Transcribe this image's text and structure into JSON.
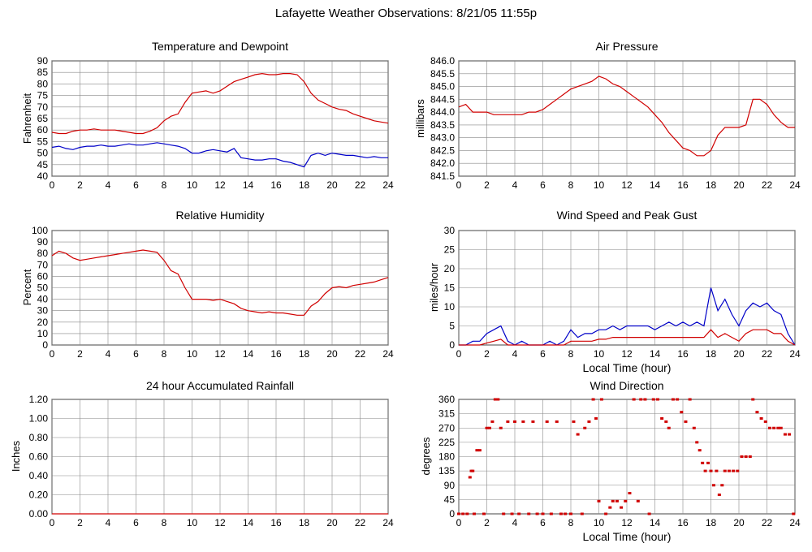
{
  "title": "Lafayette Weather Observations: 8/21/05 11:55p",
  "colors": {
    "red": "#d00000",
    "blue": "#0000c8",
    "grid": "#888888"
  },
  "chart_data": [
    {
      "id": "temperature",
      "type": "line",
      "title": "Temperature and Dewpoint",
      "xlabel": "",
      "ylabel": "Fahrenheit",
      "xlim": [
        0,
        24
      ],
      "ylim": [
        40,
        90
      ],
      "xticks": [
        0,
        2,
        4,
        6,
        8,
        10,
        12,
        14,
        16,
        18,
        20,
        22,
        24
      ],
      "yticks": [
        40,
        45,
        50,
        55,
        60,
        65,
        70,
        75,
        80,
        85,
        90
      ],
      "grid": true,
      "series": [
        {
          "color": "#d00000",
          "x": [
            0,
            0.5,
            1,
            1.5,
            2,
            2.5,
            3,
            3.5,
            4,
            4.5,
            5,
            5.5,
            6,
            6.5,
            7,
            7.5,
            8,
            8.5,
            9,
            9.5,
            10,
            10.5,
            11,
            11.5,
            12,
            12.5,
            13,
            13.5,
            14,
            14.5,
            15,
            15.5,
            16,
            16.5,
            17,
            17.5,
            18,
            18.5,
            19,
            19.5,
            20,
            20.5,
            21,
            21.5,
            22,
            22.5,
            23,
            23.5,
            24
          ],
          "y": [
            59,
            58.5,
            58.5,
            59.5,
            60,
            60,
            60.5,
            60,
            60,
            60,
            59.5,
            59,
            58.5,
            58.5,
            59.5,
            61,
            64,
            66,
            67,
            72,
            76,
            76.5,
            77,
            76,
            77,
            79,
            81,
            82,
            83,
            84,
            84.5,
            84,
            84,
            84.5,
            84.5,
            84,
            81,
            76,
            73,
            71.5,
            70,
            69,
            68.5,
            67,
            66,
            65,
            64,
            63.5,
            63
          ]
        },
        {
          "color": "#0000c8",
          "x": [
            0,
            0.5,
            1,
            1.5,
            2,
            2.5,
            3,
            3.5,
            4,
            4.5,
            5,
            5.5,
            6,
            6.5,
            7,
            7.5,
            8,
            8.5,
            9,
            9.5,
            10,
            10.5,
            11,
            11.5,
            12,
            12.5,
            13,
            13.5,
            14,
            14.5,
            15,
            15.5,
            16,
            16.5,
            17,
            17.5,
            18,
            18.5,
            19,
            19.5,
            20,
            20.5,
            21,
            21.5,
            22,
            22.5,
            23,
            23.5,
            24
          ],
          "y": [
            52.5,
            53,
            52,
            51.5,
            52.5,
            53,
            53,
            53.5,
            53,
            53,
            53.5,
            54,
            53.5,
            53.5,
            54,
            54.5,
            54,
            53.5,
            53,
            52,
            50,
            50,
            51,
            51.5,
            51,
            50.5,
            52,
            48,
            47.5,
            47,
            47,
            47.5,
            47.5,
            46.5,
            46,
            45,
            44,
            49,
            50,
            49,
            50,
            49.5,
            49,
            49,
            48.5,
            48,
            48.5,
            48,
            48
          ]
        }
      ]
    },
    {
      "id": "pressure",
      "type": "line",
      "title": "Air Pressure",
      "xlabel": "",
      "ylabel": "millibars",
      "xlim": [
        0,
        24
      ],
      "ylim": [
        841.5,
        846.0
      ],
      "xticks": [
        0,
        2,
        4,
        6,
        8,
        10,
        12,
        14,
        16,
        18,
        20,
        22,
        24
      ],
      "yticks": [
        "841.5",
        "842.0",
        "842.5",
        "843.0",
        "843.5",
        "844.0",
        "844.5",
        "845.0",
        "845.5",
        "846.0"
      ],
      "grid": true,
      "series": [
        {
          "color": "#d00000",
          "x": [
            0,
            0.5,
            1,
            1.5,
            2,
            2.5,
            3,
            3.5,
            4,
            4.5,
            5,
            5.5,
            6,
            6.5,
            7,
            7.5,
            8,
            8.5,
            9,
            9.5,
            10,
            10.5,
            11,
            11.5,
            12,
            12.5,
            13,
            13.5,
            14,
            14.5,
            15,
            15.5,
            16,
            16.5,
            17,
            17.5,
            18,
            18.5,
            19,
            19.5,
            20,
            20.5,
            21,
            21.5,
            22,
            22.5,
            23,
            23.5,
            24
          ],
          "y": [
            844.2,
            844.3,
            844.0,
            844.0,
            844.0,
            843.9,
            843.9,
            843.9,
            843.9,
            843.9,
            844.0,
            844.0,
            844.1,
            844.3,
            844.5,
            844.7,
            844.9,
            845.0,
            845.1,
            845.2,
            845.4,
            845.3,
            845.1,
            845.0,
            844.8,
            844.6,
            844.4,
            844.2,
            843.9,
            843.6,
            843.2,
            842.9,
            842.6,
            842.5,
            842.3,
            842.3,
            842.5,
            843.1,
            843.4,
            843.4,
            843.4,
            843.5,
            844.5,
            844.5,
            844.3,
            843.9,
            843.6,
            843.4,
            843.4
          ]
        }
      ]
    },
    {
      "id": "humidity",
      "type": "line",
      "title": "Relative Humidity",
      "xlabel": "",
      "ylabel": "Percent",
      "xlim": [
        0,
        24
      ],
      "ylim": [
        0,
        100
      ],
      "xticks": [
        0,
        2,
        4,
        6,
        8,
        10,
        12,
        14,
        16,
        18,
        20,
        22,
        24
      ],
      "yticks": [
        0,
        10,
        20,
        30,
        40,
        50,
        60,
        70,
        80,
        90,
        100
      ],
      "grid": true,
      "series": [
        {
          "color": "#d00000",
          "x": [
            0,
            0.5,
            1,
            1.5,
            2,
            2.5,
            3,
            3.5,
            4,
            4.5,
            5,
            5.5,
            6,
            6.5,
            7,
            7.5,
            8,
            8.5,
            9,
            9.5,
            10,
            10.5,
            11,
            11.5,
            12,
            12.5,
            13,
            13.5,
            14,
            14.5,
            15,
            15.5,
            16,
            16.5,
            17,
            17.5,
            18,
            18.5,
            19,
            19.5,
            20,
            20.5,
            21,
            21.5,
            22,
            22.5,
            23,
            23.5,
            24
          ],
          "y": [
            78,
            82,
            80,
            76,
            74,
            75,
            76,
            77,
            78,
            79,
            80,
            81,
            82,
            83,
            82,
            81,
            74,
            65,
            62,
            50,
            40,
            40,
            40,
            39,
            40,
            38,
            36,
            32,
            30,
            29,
            28,
            29,
            28,
            28,
            27,
            26,
            26,
            34,
            38,
            45,
            50,
            51,
            50,
            52,
            53,
            54,
            55,
            57,
            59
          ]
        }
      ]
    },
    {
      "id": "wind-speed",
      "type": "line",
      "title": "Wind Speed and Peak Gust",
      "xlabel": "Local Time (hour)",
      "ylabel": "miles/hour",
      "xlim": [
        0,
        24
      ],
      "ylim": [
        0,
        30
      ],
      "xticks": [
        0,
        2,
        4,
        6,
        8,
        10,
        12,
        14,
        16,
        18,
        20,
        22,
        24
      ],
      "yticks": [
        0,
        5,
        10,
        15,
        20,
        25,
        30
      ],
      "grid": true,
      "series": [
        {
          "color": "#0000c8",
          "x": [
            0,
            0.5,
            1,
            1.5,
            2,
            2.5,
            3,
            3.5,
            4,
            4.5,
            5,
            5.5,
            6,
            6.5,
            7,
            7.5,
            8,
            8.5,
            9,
            9.5,
            10,
            10.5,
            11,
            11.5,
            12,
            12.5,
            13,
            13.5,
            14,
            14.5,
            15,
            15.5,
            16,
            16.5,
            17,
            17.5,
            18,
            18.5,
            19,
            19.5,
            20,
            20.5,
            21,
            21.5,
            22,
            22.5,
            23,
            23.5,
            24
          ],
          "y": [
            0,
            0,
            1,
            1,
            3,
            4,
            5,
            1,
            0,
            1,
            0,
            0,
            0,
            1,
            0,
            1,
            4,
            2,
            3,
            3,
            4,
            4,
            5,
            4,
            5,
            5,
            5,
            5,
            4,
            5,
            6,
            5,
            6,
            5,
            6,
            5,
            15,
            9,
            12,
            8,
            5,
            9,
            11,
            10,
            11,
            9,
            8,
            3,
            0
          ]
        },
        {
          "color": "#d00000",
          "x": [
            0,
            0.5,
            1,
            1.5,
            2,
            2.5,
            3,
            3.5,
            4,
            4.5,
            5,
            5.5,
            6,
            6.5,
            7,
            7.5,
            8,
            8.5,
            9,
            9.5,
            10,
            10.5,
            11,
            11.5,
            12,
            12.5,
            13,
            13.5,
            14,
            14.5,
            15,
            15.5,
            16,
            16.5,
            17,
            17.5,
            18,
            18.5,
            19,
            19.5,
            20,
            20.5,
            21,
            21.5,
            22,
            22.5,
            23,
            23.5,
            24
          ],
          "y": [
            0,
            0,
            0,
            0,
            0.5,
            1,
            1.5,
            0,
            0,
            0,
            0,
            0,
            0,
            0,
            0,
            0,
            1,
            1,
            1,
            1,
            1.5,
            1.5,
            2,
            2,
            2,
            2,
            2,
            2,
            2,
            2,
            2,
            2,
            2,
            2,
            2,
            2,
            4,
            2,
            3,
            2,
            1,
            3,
            4,
            4,
            4,
            3,
            3,
            1,
            0
          ]
        }
      ]
    },
    {
      "id": "rainfall",
      "type": "line",
      "title": "24 hour Accumulated Rainfall",
      "xlabel": "",
      "ylabel": "Inches",
      "xlim": [
        0,
        24
      ],
      "ylim": [
        0,
        1.2
      ],
      "xticks": [
        0,
        2,
        4,
        6,
        8,
        10,
        12,
        14,
        16,
        18,
        20,
        22,
        24
      ],
      "yticks": [
        "0.00",
        "0.20",
        "0.40",
        "0.60",
        "0.80",
        "1.00",
        "1.20"
      ],
      "grid": true,
      "series": [
        {
          "color": "#d00000",
          "x": [
            0,
            24
          ],
          "y": [
            0,
            0
          ]
        }
      ]
    },
    {
      "id": "wind-direction",
      "type": "scatter",
      "title": "Wind Direction",
      "xlabel": "Local Time (hour)",
      "ylabel": "degrees",
      "xlim": [
        0,
        24
      ],
      "ylim": [
        0,
        360
      ],
      "xticks": [
        0,
        2,
        4,
        6,
        8,
        10,
        12,
        14,
        16,
        18,
        20,
        22,
        24
      ],
      "yticks": [
        0,
        45,
        90,
        135,
        180,
        225,
        270,
        315,
        360
      ],
      "grid": true,
      "series": [
        {
          "color": "#d00000",
          "x": [
            0,
            0.3,
            0.6,
            0.8,
            0.9,
            1.0,
            1.1,
            1.3,
            1.5,
            1.8,
            2.0,
            2.2,
            2.4,
            2.6,
            2.8,
            3.0,
            3.2,
            3.5,
            3.8,
            4.0,
            4.3,
            4.6,
            5.0,
            5.3,
            5.6,
            6.0,
            6.3,
            6.6,
            7.0,
            7.3,
            7.6,
            8.0,
            8.2,
            8.5,
            8.8,
            9.0,
            9.3,
            9.6,
            9.8,
            10.0,
            10.2,
            10.5,
            10.8,
            11.0,
            11.3,
            11.6,
            11.9,
            12.2,
            12.5,
            12.8,
            13.0,
            13.3,
            13.6,
            13.9,
            14.2,
            14.5,
            14.8,
            15.0,
            15.3,
            15.6,
            15.9,
            16.2,
            16.5,
            16.8,
            17.0,
            17.2,
            17.4,
            17.6,
            17.8,
            18.0,
            18.2,
            18.4,
            18.6,
            18.8,
            19.0,
            19.3,
            19.6,
            19.9,
            20.2,
            20.5,
            20.8,
            21.0,
            21.3,
            21.6,
            21.9,
            22.2,
            22.5,
            22.8,
            23.0,
            23.3,
            23.6,
            23.9
          ],
          "y": [
            0,
            0,
            0,
            115,
            135,
            135,
            0,
            200,
            200,
            0,
            270,
            270,
            290,
            360,
            360,
            270,
            0,
            290,
            0,
            290,
            0,
            290,
            0,
            290,
            0,
            0,
            290,
            0,
            290,
            0,
            0,
            0,
            290,
            250,
            0,
            270,
            290,
            360,
            300,
            40,
            360,
            0,
            20,
            40,
            40,
            20,
            40,
            65,
            360,
            40,
            360,
            360,
            0,
            360,
            360,
            300,
            290,
            270,
            360,
            360,
            320,
            290,
            360,
            270,
            225,
            200,
            160,
            135,
            160,
            135,
            90,
            135,
            60,
            90,
            135,
            135,
            135,
            135,
            180,
            180,
            180,
            360,
            320,
            300,
            290,
            270,
            270,
            270,
            270,
            250,
            250,
            0
          ]
        }
      ]
    }
  ]
}
